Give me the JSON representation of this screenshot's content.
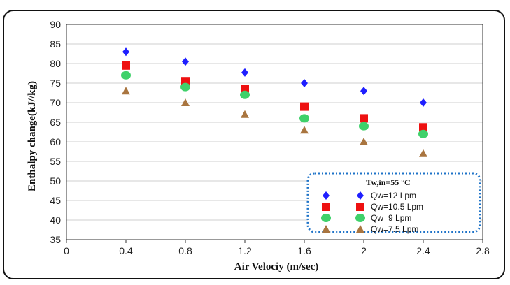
{
  "chart_data": {
    "type": "scatter",
    "xlabel": "Air Velociy (m/sec)",
    "ylabel": "Enthalpy change(kJ//kg)",
    "xlim": [
      0,
      2.8
    ],
    "ylim": [
      35,
      90
    ],
    "xticks": [
      "0",
      "0.4",
      "0.8",
      "1.2",
      "1.6",
      "2",
      "2.4",
      "2.8"
    ],
    "yticks": [
      "35",
      "40",
      "45",
      "50",
      "55",
      "60",
      "65",
      "70",
      "75",
      "80",
      "85",
      "90"
    ],
    "x": [
      0.4,
      0.8,
      1.2,
      1.6,
      2.0,
      2.4
    ],
    "grid": "horizontal",
    "legend_title": "Tw,in=55 °C",
    "legend_placement": "bottom-right",
    "series": [
      {
        "name": "Qw=12 Lpm",
        "marker": "diamond",
        "color": "#1f1fff",
        "values": [
          83,
          80.5,
          77.7,
          75,
          73,
          70
        ]
      },
      {
        "name": "Qw=10.5 Lpm",
        "marker": "square",
        "color": "#ee1111",
        "values": [
          79.5,
          75.5,
          73.5,
          69,
          66,
          63.7
        ]
      },
      {
        "name": "Qw=9 Lpm",
        "marker": "circle",
        "color": "#3fd16a",
        "values": [
          77,
          74,
          72,
          66,
          64,
          62
        ]
      },
      {
        "name": "Qw=7.5 Lpm",
        "marker": "triangle",
        "color": "#a9753f",
        "values": [
          73,
          70,
          67,
          63,
          60,
          57
        ]
      }
    ]
  }
}
